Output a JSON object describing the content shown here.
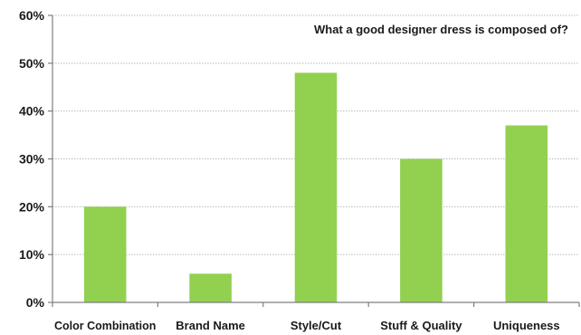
{
  "chart_data": {
    "type": "bar",
    "title": "What a good designer dress is composed of?",
    "categories": [
      "Color Combination",
      "Brand Name",
      "Style/Cut",
      "Stuff & Quality",
      "Uniqueness"
    ],
    "values": [
      0.2,
      0.06,
      0.48,
      0.3,
      0.37
    ],
    "xlabel": "",
    "ylabel": "",
    "ylim": [
      0,
      0.6
    ],
    "yticks": [
      "0%",
      "10%",
      "20%",
      "30%",
      "40%",
      "50%",
      "60%"
    ],
    "grid": true,
    "legend": "none",
    "bar_color": "#92d050"
  }
}
